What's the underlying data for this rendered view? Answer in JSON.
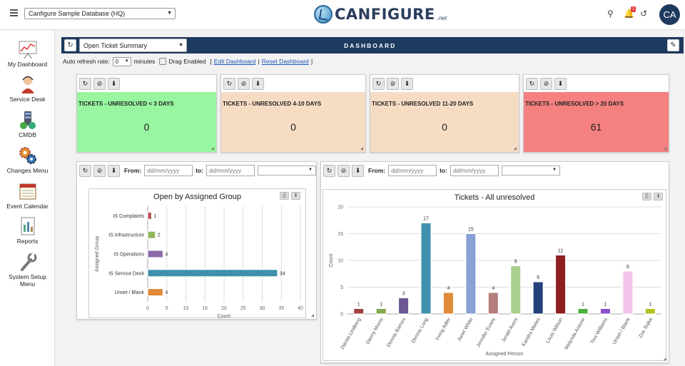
{
  "app": {
    "database": "Canfigure Sample Database (HQ)",
    "logo_text": "CANFIGURE",
    "logo_suffix": ".net",
    "notification_count": "1",
    "user_initials": "CA"
  },
  "sidebar": {
    "items": [
      {
        "label": "My Dashboard",
        "icon": "dashboard-icon"
      },
      {
        "label": "Service Desk",
        "icon": "service-desk-icon"
      },
      {
        "label": "CMDB",
        "icon": "cmdb-icon"
      },
      {
        "label": "Changes Menu",
        "icon": "changes-icon"
      },
      {
        "label": "Event Calendar",
        "icon": "calendar-icon"
      },
      {
        "label": "Reports",
        "icon": "reports-icon"
      },
      {
        "label": "System Setup",
        "label2": "Menu",
        "icon": "setup-icon"
      }
    ]
  },
  "dashboard": {
    "title": "DASHBOARD",
    "view": "Open Ticket Summary",
    "auto_refresh_label": "Auto refresh rate:",
    "auto_refresh_value": "0",
    "minutes_label": "minutes",
    "drag_label": "Drag Enabled",
    "edit_link": "Edit Dashboard",
    "reset_link": "Reset Dashboard",
    "bracket_open": "[",
    "bracket_sep": "|",
    "bracket_close": "]"
  },
  "kpis": [
    {
      "title": "TICKETS - UNRESOLVED < 3 DAYS",
      "value": "0",
      "color": "#98f5a0"
    },
    {
      "title": "TICKETS - UNRESOLVED 4-10 DAYS",
      "value": "0",
      "color": "#f7dcc4"
    },
    {
      "title": "TICKETS - UNRESOLVED 11-20 DAYS",
      "value": "0",
      "color": "#f7dcc4"
    },
    {
      "title": "TICKETS - UNRESOLVED > 20 DAYS",
      "value": "61",
      "color": "#f58080"
    }
  ],
  "filters": {
    "from_label": "From:",
    "to_label": "to:",
    "date_placeholder": "dd/mm/yyyy"
  },
  "chart_data": [
    {
      "type": "bar",
      "orientation": "horizontal",
      "title": "Open by Assigned Group",
      "xlabel": "Count",
      "ylabel": "Assigned Group",
      "xlim": [
        0,
        40
      ],
      "xticks": [
        "0",
        "5",
        "10",
        "15",
        "20",
        "25",
        "30",
        "35",
        "40"
      ],
      "categories": [
        "IS Complaints",
        "IS Infrastructure",
        "IS Operations",
        "IS Service Desk",
        "Unset / Blank"
      ],
      "values": [
        1,
        2,
        4,
        34,
        4
      ],
      "colors": [
        "#b5514e",
        "#8fb55a",
        "#8a6aa8",
        "#3f8fad",
        "#e08a3a"
      ]
    },
    {
      "type": "bar",
      "title": "Tickets - All unresolved",
      "xlabel": "Assigned Person",
      "ylabel": "Count",
      "ylim": [
        0,
        20
      ],
      "yticks": [
        "0",
        "5",
        "10",
        "15",
        "20"
      ],
      "categories": [
        "Danita Lindberg",
        "Danny Morris",
        "Dennis Barnes",
        "Dennis Long",
        "Irving Adler",
        "Janet White",
        "Jennifer Evans",
        "Jerald Avent",
        "Kandra Mieles",
        "Louis Wilson",
        "Melynda Antone",
        "Toni Williams",
        "Unset / Blank",
        "Zoe Sojka"
      ],
      "values": [
        1,
        1,
        3,
        17,
        4,
        15,
        4,
        9,
        6,
        11,
        1,
        1,
        8,
        1
      ],
      "colors": [
        "#a3433f",
        "#84a84a",
        "#6b5894",
        "#3f8fad",
        "#e08a3a",
        "#8aa0d6",
        "#b57c7c",
        "#a9d08c",
        "#24407a",
        "#8f1f1f",
        "#4caf3e",
        "#8a4fcf",
        "#f4c2e8",
        "#b5c21f"
      ]
    }
  ]
}
